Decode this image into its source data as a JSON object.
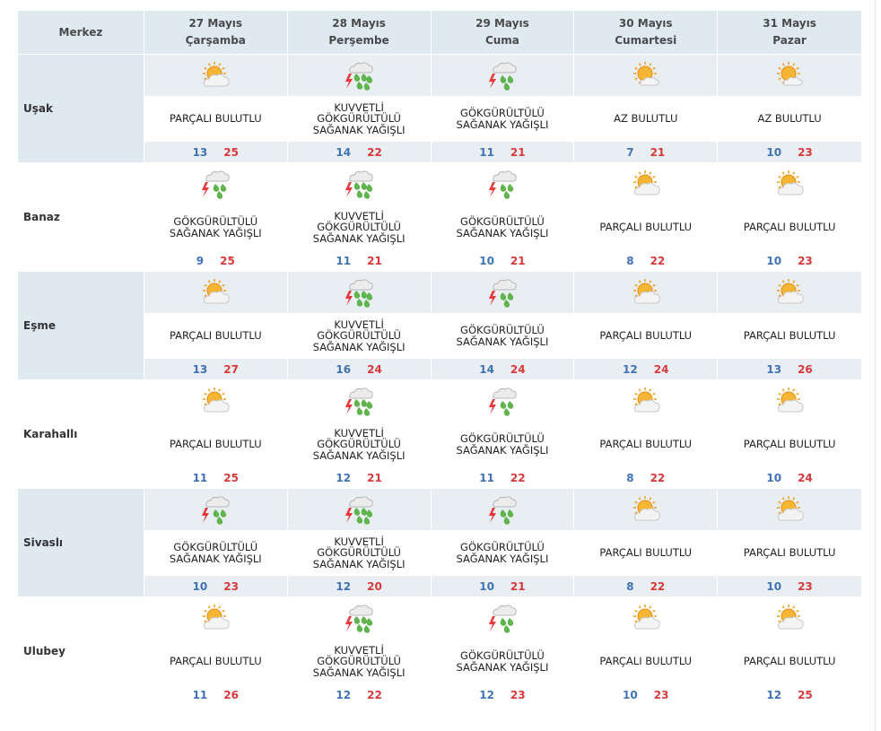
{
  "header": {
    "center_label": "Merkez",
    "days": [
      {
        "date": "27 Mayıs",
        "weekday": "Çarşamba"
      },
      {
        "date": "28 Mayıs",
        "weekday": "Perşembe"
      },
      {
        "date": "29 Mayıs",
        "weekday": "Cuma"
      },
      {
        "date": "30 Mayıs",
        "weekday": "Cumartesi"
      },
      {
        "date": "31 Mayıs",
        "weekday": "Pazar"
      }
    ]
  },
  "rows": [
    {
      "name": "Uşak",
      "shaded": true,
      "days": [
        {
          "icon": "partly-cloudy-icon",
          "desc": "PARÇALI BULUTLU",
          "min": "13",
          "max": "25"
        },
        {
          "icon": "heavy-thunder-shower-icon",
          "desc": "KUVVETLİ GÖKGÜRÜLTÜLÜ SAĞANAK YAĞIŞLI",
          "min": "14",
          "max": "22"
        },
        {
          "icon": "thunder-shower-icon",
          "desc": "GÖKGÜRÜLTÜLÜ SAĞANAK YAĞIŞLI",
          "min": "11",
          "max": "21"
        },
        {
          "icon": "mostly-sunny-icon",
          "desc": "AZ BULUTLU",
          "min": "7",
          "max": "21"
        },
        {
          "icon": "mostly-sunny-icon",
          "desc": "AZ BULUTLU",
          "min": "10",
          "max": "23"
        }
      ]
    },
    {
      "name": "Banaz",
      "shaded": false,
      "days": [
        {
          "icon": "thunder-shower-icon",
          "desc": "GÖKGÜRÜLTÜLÜ SAĞANAK YAĞIŞLI",
          "min": "9",
          "max": "25"
        },
        {
          "icon": "heavy-thunder-shower-icon",
          "desc": "KUVVETLİ GÖKGÜRÜLTÜLÜ SAĞANAK YAĞIŞLI",
          "min": "11",
          "max": "21"
        },
        {
          "icon": "thunder-shower-icon",
          "desc": "GÖKGÜRÜLTÜLÜ SAĞANAK YAĞIŞLI",
          "min": "10",
          "max": "21"
        },
        {
          "icon": "partly-cloudy-icon",
          "desc": "PARÇALI BULUTLU",
          "min": "8",
          "max": "22"
        },
        {
          "icon": "partly-cloudy-icon",
          "desc": "PARÇALI BULUTLU",
          "min": "10",
          "max": "23"
        }
      ]
    },
    {
      "name": "Eşme",
      "shaded": true,
      "days": [
        {
          "icon": "partly-cloudy-icon",
          "desc": "PARÇALI BULUTLU",
          "min": "13",
          "max": "27"
        },
        {
          "icon": "heavy-thunder-shower-icon",
          "desc": "KUVVETLİ GÖKGÜRÜLTÜLÜ SAĞANAK YAĞIŞLI",
          "min": "16",
          "max": "24"
        },
        {
          "icon": "thunder-shower-icon",
          "desc": "GÖKGÜRÜLTÜLÜ SAĞANAK YAĞIŞLI",
          "min": "14",
          "max": "24"
        },
        {
          "icon": "partly-cloudy-icon",
          "desc": "PARÇALI BULUTLU",
          "min": "12",
          "max": "24"
        },
        {
          "icon": "partly-cloudy-icon",
          "desc": "PARÇALI BULUTLU",
          "min": "13",
          "max": "26"
        }
      ]
    },
    {
      "name": "Karahallı",
      "shaded": false,
      "days": [
        {
          "icon": "partly-cloudy-icon",
          "desc": "PARÇALI BULUTLU",
          "min": "11",
          "max": "25"
        },
        {
          "icon": "heavy-thunder-shower-icon",
          "desc": "KUVVETLİ GÖKGÜRÜLTÜLÜ SAĞANAK YAĞIŞLI",
          "min": "12",
          "max": "21"
        },
        {
          "icon": "thunder-shower-icon",
          "desc": "GÖKGÜRÜLTÜLÜ SAĞANAK YAĞIŞLI",
          "min": "11",
          "max": "22"
        },
        {
          "icon": "partly-cloudy-icon",
          "desc": "PARÇALI BULUTLU",
          "min": "8",
          "max": "22"
        },
        {
          "icon": "partly-cloudy-icon",
          "desc": "PARÇALI BULUTLU",
          "min": "10",
          "max": "24"
        }
      ]
    },
    {
      "name": "Sivaslı",
      "shaded": true,
      "days": [
        {
          "icon": "thunder-shower-icon",
          "desc": "GÖKGÜRÜLTÜLÜ SAĞANAK YAĞIŞLI",
          "min": "10",
          "max": "23"
        },
        {
          "icon": "heavy-thunder-shower-icon",
          "desc": "KUVVETLİ GÖKGÜRÜLTÜLÜ SAĞANAK YAĞIŞLI",
          "min": "12",
          "max": "20"
        },
        {
          "icon": "thunder-shower-icon",
          "desc": "GÖKGÜRÜLTÜLÜ SAĞANAK YAĞIŞLI",
          "min": "10",
          "max": "21"
        },
        {
          "icon": "partly-cloudy-icon",
          "desc": "PARÇALI BULUTLU",
          "min": "8",
          "max": "22"
        },
        {
          "icon": "partly-cloudy-icon",
          "desc": "PARÇALI BULUTLU",
          "min": "10",
          "max": "23"
        }
      ]
    },
    {
      "name": "Ulubey",
      "shaded": false,
      "days": [
        {
          "icon": "partly-cloudy-icon",
          "desc": "PARÇALI BULUTLU",
          "min": "11",
          "max": "26"
        },
        {
          "icon": "heavy-thunder-shower-icon",
          "desc": "KUVVETLİ GÖKGÜRÜLTÜLÜ SAĞANAK YAĞIŞLI",
          "min": "12",
          "max": "22"
        },
        {
          "icon": "thunder-shower-icon",
          "desc": "GÖKGÜRÜLTÜLÜ SAĞANAK YAĞIŞLI",
          "min": "12",
          "max": "23"
        },
        {
          "icon": "partly-cloudy-icon",
          "desc": "PARÇALI BULUTLU",
          "min": "10",
          "max": "23"
        },
        {
          "icon": "partly-cloudy-icon",
          "desc": "PARÇALI BULUTLU",
          "min": "12",
          "max": "25"
        }
      ]
    }
  ],
  "colors": {
    "header_bg": "#dfe9f0",
    "band_bg": "#e8eef2",
    "min_temp": "#3f73b5",
    "max_temp": "#d8393b"
  }
}
